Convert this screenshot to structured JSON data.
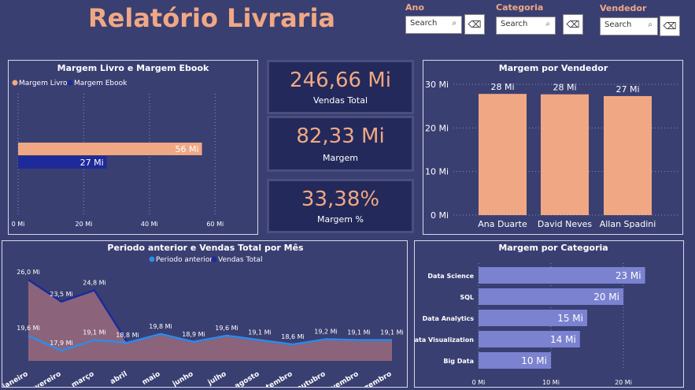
{
  "header": {
    "title": "Relatório Livraria"
  },
  "filters": [
    {
      "label": "Ano",
      "placeholder": "Search"
    },
    {
      "label": "Categoria",
      "placeholder": "Search"
    },
    {
      "label": "Vendedor",
      "placeholder": "Search"
    }
  ],
  "kpis": [
    {
      "value": "246,66 Mi",
      "label": "Vendas Total"
    },
    {
      "value": "82,33 Mi",
      "label": "Margem"
    },
    {
      "value": "33,38%",
      "label": "Margem %"
    }
  ],
  "colors": {
    "salmon": "#f0a884",
    "navy": "#1e2a9a",
    "lavender": "#7b82d0",
    "blue": "#2f8be8"
  },
  "chart_data": [
    {
      "type": "bar",
      "orientation": "horizontal",
      "title": "Margem Livro e Margem Ebook",
      "series": [
        {
          "name": "Margem Livro",
          "values": [
            56
          ],
          "labels": [
            "56 Mi"
          ]
        },
        {
          "name": "Margem Ebook",
          "values": [
            27
          ],
          "labels": [
            "27 Mi"
          ]
        }
      ],
      "xlim": [
        0,
        70
      ],
      "xticks": [
        "0 Mi",
        "20 Mi",
        "40 Mi",
        "60 Mi"
      ],
      "legend": "top-left"
    },
    {
      "type": "bar",
      "title": "Margem por Vendedor",
      "categories": [
        "Ana Duarte",
        "David Neves",
        "Allan Spadini"
      ],
      "values": [
        27.8,
        27.7,
        27.3
      ],
      "labels": [
        "28 Mi",
        "28 Mi",
        "27 Mi"
      ],
      "ylim": [
        0,
        30
      ],
      "yticks": [
        "0 Mi",
        "10 Mi",
        "20 Mi",
        "30 Mi"
      ]
    },
    {
      "type": "area",
      "title": "Periodo anterior e Vendas Total por Mês",
      "categories": [
        "janeiro",
        "fevereiro",
        "março",
        "abril",
        "maio",
        "junho",
        "julho",
        "agosto",
        "setembro",
        "outubro",
        "novembro",
        "dezembro"
      ],
      "series": [
        {
          "name": "Periodo anterior",
          "values": [
            19.6,
            17.9,
            19.1,
            18.8,
            19.8,
            18.9,
            19.6,
            19.1,
            18.6,
            19.2,
            19.1,
            19.1
          ],
          "labels": [
            "19,6 Mi",
            "17,9 Mi",
            "19,1 Mi",
            "",
            "",
            "",
            "",
            "",
            "",
            "",
            "",
            ""
          ]
        },
        {
          "name": "Vendas Total",
          "values": [
            26.0,
            23.5,
            24.8,
            18.8,
            19.8,
            18.9,
            19.6,
            19.1,
            18.6,
            19.2,
            19.1,
            19.1
          ],
          "labels": [
            "26,0 Mi",
            "23,5 Mi",
            "24,8 Mi",
            "18,8 Mi",
            "19,8 Mi",
            "18,9 Mi",
            "19,6 Mi",
            "19,1 Mi",
            "18,6 Mi",
            "19,2 Mi",
            "19,1 Mi",
            "19,1 Mi"
          ]
        }
      ],
      "ylim": [
        16,
        27
      ],
      "legend": "top-center"
    },
    {
      "type": "bar",
      "orientation": "horizontal",
      "title": "Margem por Categoria",
      "categories": [
        "Data Science",
        "SQL",
        "Data Analytics",
        "Data Visualization",
        "Big Data"
      ],
      "values": [
        23,
        20,
        15,
        14,
        10
      ],
      "labels": [
        "23 Mi",
        "20 Mi",
        "15 Mi",
        "14 Mi",
        "10 Mi"
      ],
      "xlim": [
        0,
        25
      ],
      "xticks": [
        "0 Mi",
        "10 Mi",
        "20 Mi"
      ]
    }
  ]
}
